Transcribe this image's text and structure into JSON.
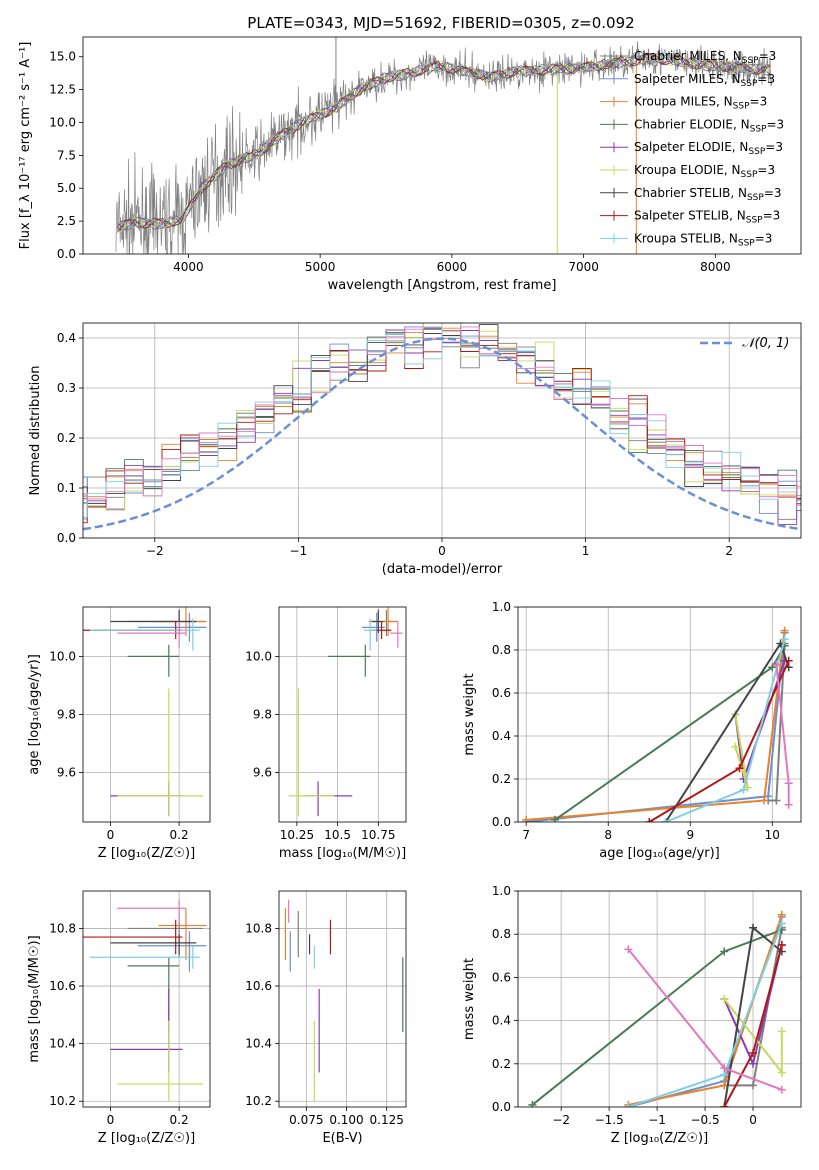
{
  "figure": {
    "title": "PLATE=0343, MJD=51692, FIBERID=0305, z=0.092"
  },
  "palette": {
    "Chabrier MILES": "#7f7f7f",
    "Salpeter MILES": "#6a8fd6",
    "Kroupa MILES": "#e8822b",
    "Chabrier ELODIE": "#4a7a5a",
    "Salpeter ELODIE": "#8a3cb0",
    "Kroupa ELODIE": "#c8d85a",
    "Chabrier STELIB": "#444444",
    "Salpeter STELIB": "#b01818",
    "Kroupa STELIB": "#7fcfe0",
    "pink": "#e377c2"
  },
  "chart_data": [
    {
      "id": "spectrum",
      "type": "line",
      "xlabel": "wavelength [Angstrom, rest frame]",
      "ylabel": "Flux [f_λ 10⁻¹⁷ erg cm⁻² s⁻¹ A⁻¹]",
      "xlim": [
        3200,
        8650
      ],
      "ylim": [
        0,
        16.5
      ],
      "xticks": [
        4000,
        5000,
        6000,
        7000,
        8000
      ],
      "yticks": [
        0.0,
        2.5,
        5.0,
        7.5,
        10.0,
        12.5,
        15.0
      ],
      "model_shape": [
        [
          3450,
          2.0
        ],
        [
          3600,
          2.4
        ],
        [
          3800,
          2.3
        ],
        [
          3950,
          2.6
        ],
        [
          4100,
          5.0
        ],
        [
          4300,
          6.8
        ],
        [
          4500,
          7.5
        ],
        [
          4700,
          9.0
        ],
        [
          4900,
          10.2
        ],
        [
          5100,
          11.0
        ],
        [
          5300,
          12.5
        ],
        [
          5500,
          13.4
        ],
        [
          5700,
          13.8
        ],
        [
          5900,
          14.3
        ],
        [
          6100,
          13.9
        ],
        [
          6300,
          13.5
        ],
        [
          6500,
          13.9
        ],
        [
          6700,
          14.0
        ],
        [
          6900,
          14.1
        ],
        [
          7100,
          14.3
        ],
        [
          7300,
          14.6
        ],
        [
          7500,
          14.9
        ],
        [
          7700,
          14.7
        ],
        [
          7900,
          14.4
        ],
        [
          8100,
          14.2
        ],
        [
          8400,
          14.0
        ]
      ],
      "legend_position": "right",
      "series": [
        {
          "name": "Chabrier MILES, N_SSP=3"
        },
        {
          "name": "Salpeter MILES, N_SSP=3"
        },
        {
          "name": "Kroupa MILES, N_SSP=3"
        },
        {
          "name": "Chabrier ELODIE, N_SSP=3"
        },
        {
          "name": "Salpeter ELODIE, N_SSP=3"
        },
        {
          "name": "Kroupa ELODIE, N_SSP=3"
        },
        {
          "name": "Chabrier STELIB, N_SSP=3"
        },
        {
          "name": "Salpeter STELIB, N_SSP=3"
        },
        {
          "name": "Kroupa STELIB, N_SSP=3"
        }
      ]
    },
    {
      "id": "residuals",
      "type": "line",
      "xlabel": "(data-model)/error",
      "ylabel": "Normed distribution",
      "xlim": [
        -2.5,
        2.5
      ],
      "ylim": [
        0,
        0.43
      ],
      "xticks": [
        -2,
        -1,
        0,
        1,
        2
      ],
      "yticks": [
        0.0,
        0.1,
        0.2,
        0.3,
        0.4
      ],
      "legend": "𝒩(0, 1)",
      "grid": true
    },
    {
      "id": "age_vs_Z",
      "type": "scatter",
      "xlabel": "Z [log₁₀(Z/Z☉)]",
      "ylabel": "age  [log₁₀(age/yr)]",
      "xlim": [
        -0.08,
        0.29
      ],
      "ylim": [
        9.43,
        10.17
      ],
      "xticks": [
        0.0,
        0.2
      ],
      "yticks": [
        9.6,
        9.8,
        10.0
      ],
      "grid": true
    },
    {
      "id": "age_vs_mass",
      "type": "scatter",
      "xlabel": "mass [log₁₀(M/M☉)]",
      "ylabel": "",
      "xlim": [
        10.14,
        10.92
      ],
      "ylim": [
        9.43,
        10.17
      ],
      "xticks": [
        10.25,
        10.5,
        10.75
      ],
      "yticks": [
        9.6,
        9.8,
        10.0
      ],
      "grid": true
    },
    {
      "id": "weight_vs_age",
      "type": "line",
      "xlabel": "age  [log₁₀(age/yr)]",
      "ylabel": "mass weight",
      "xlim": [
        6.9,
        10.35
      ],
      "ylim": [
        0,
        1.0
      ],
      "xticks": [
        7,
        8,
        9,
        10
      ],
      "yticks": [
        0.0,
        0.2,
        0.4,
        0.6,
        0.8,
        1.0
      ],
      "grid": true
    },
    {
      "id": "mass_vs_Z",
      "type": "scatter",
      "xlabel": "Z [log₁₀(Z/Z☉)]",
      "ylabel": "mass [log₁₀(M/M☉)]",
      "xlim": [
        -0.08,
        0.29
      ],
      "ylim": [
        10.18,
        10.93
      ],
      "xticks": [
        0.0,
        0.2
      ],
      "yticks": [
        10.2,
        10.4,
        10.6,
        10.8
      ],
      "grid": true
    },
    {
      "id": "mass_vs_ebv",
      "type": "scatter",
      "xlabel": "E(B-V)",
      "ylabel": "",
      "xlim": [
        0.058,
        0.137
      ],
      "ylim": [
        10.18,
        10.93
      ],
      "xticks": [
        0.075,
        0.1,
        0.125
      ],
      "xticklabels": [
        "0.075",
        "0.100",
        "0.125"
      ],
      "yticks": [
        10.2,
        10.4,
        10.6,
        10.8
      ],
      "grid": true
    },
    {
      "id": "weight_vs_Z",
      "type": "line",
      "xlabel": "Z [log₁₀(Z/Z☉)]",
      "ylabel": "mass weight",
      "xlim": [
        -2.45,
        0.5
      ],
      "ylim": [
        0,
        1.0
      ],
      "xticks": [
        -2.0,
        -1.5,
        -1.0,
        -0.5,
        0.0
      ],
      "yticks": [
        0.0,
        0.2,
        0.4,
        0.6,
        0.8,
        1.0
      ],
      "grid": true
    }
  ],
  "fits": [
    {
      "name": "Chabrier MILES",
      "Z": 0.2,
      "age": 10.12,
      "mass": 10.8,
      "ebv": 0.07,
      "Zerr": [
        0.15,
        0.07
      ],
      "ageerr": [
        0.05,
        0.04
      ],
      "masserr": [
        0.1,
        0.06
      ],
      "ages": [
        9.95,
        10.05,
        10.15
      ],
      "zs": [
        -0.3,
        0.0,
        0.3
      ],
      "weights": [
        0.1,
        0.1,
        0.83
      ]
    },
    {
      "name": "Salpeter MILES",
      "Z": 0.23,
      "age": 10.1,
      "mass": 10.74,
      "ebv": 0.065,
      "Zerr": [
        0.15,
        0.05
      ],
      "ageerr": [
        0.05,
        0.05
      ],
      "masserr": [
        0.09,
        0.05
      ],
      "ages": [
        7.0,
        9.95,
        10.15
      ],
      "zs": [
        -1.3,
        -0.3,
        0.3
      ],
      "weights": [
        0.0,
        0.12,
        0.88
      ]
    },
    {
      "name": "Kroupa MILES",
      "Z": 0.22,
      "age": 10.12,
      "mass": 10.81,
      "ebv": 0.062,
      "Zerr": [
        0.08,
        0.06
      ],
      "ageerr": [
        0.05,
        0.05
      ],
      "masserr": [
        0.12,
        0.06
      ],
      "ages": [
        7.0,
        9.9,
        10.15
      ],
      "zs": [
        -1.3,
        -0.3,
        0.3
      ],
      "weights": [
        0.01,
        0.1,
        0.89
      ]
    },
    {
      "name": "Chabrier ELODIE",
      "Z": 0.17,
      "age": 10.0,
      "mass": 10.67,
      "ebv": 0.135,
      "Zerr": [
        0.12,
        0.03
      ],
      "ageerr": [
        0.07,
        0.04
      ],
      "masserr": [
        0.23,
        0.03
      ],
      "ages": [
        7.35,
        10.0,
        10.15
      ],
      "zs": [
        -2.3,
        -0.3,
        0.3
      ],
      "weights": [
        0.01,
        0.72,
        0.82
      ]
    },
    {
      "name": "Salpeter ELODIE",
      "Z": 0.17,
      "age": 9.52,
      "mass": 10.38,
      "ebv": 0.083,
      "Zerr": [
        0.17,
        0.04
      ],
      "ageerr": [
        0.07,
        0.05
      ],
      "masserr": [
        0.08,
        0.21
      ],
      "ages": [
        9.55,
        9.65,
        10.15
      ],
      "zs": [
        -0.3,
        0.0,
        0.3
      ],
      "weights": [
        0.5,
        0.2,
        0.75
      ]
    },
    {
      "name": "Kroupa ELODIE",
      "Z": 0.17,
      "age": 9.52,
      "mass": 10.26,
      "ebv": 0.08,
      "Zerr": [
        0.15,
        0.1
      ],
      "ageerr": [
        0.07,
        0.37
      ],
      "masserr": [
        0.06,
        0.22
      ],
      "ages": [
        9.55,
        9.7,
        9.55
      ],
      "zs": [
        -0.3,
        0.3,
        0.3
      ],
      "weights": [
        0.5,
        0.16,
        0.35
      ]
    },
    {
      "name": "Chabrier STELIB",
      "Z": 0.2,
      "age": 10.12,
      "mass": 10.75,
      "ebv": 0.077,
      "Zerr": [
        0.2,
        0.05
      ],
      "ageerr": [
        0.04,
        0.04
      ],
      "masserr": [
        0.04,
        0.03
      ],
      "ages": [
        8.7,
        10.1,
        10.2
      ],
      "zs": [
        -0.3,
        0.0,
        0.3
      ],
      "weights": [
        0.0,
        0.83,
        0.72
      ]
    },
    {
      "name": "Salpeter STELIB",
      "Z": 0.19,
      "age": 10.09,
      "mass": 10.77,
      "ebv": 0.09,
      "Zerr": [
        0.27,
        0.02
      ],
      "ageerr": [
        0.03,
        0.03
      ],
      "masserr": [
        0.06,
        0.06
      ],
      "ages": [
        8.5,
        9.6,
        10.2
      ],
      "zs": [
        -0.3,
        0.0,
        0.3
      ],
      "weights": [
        0.0,
        0.25,
        0.75
      ]
    },
    {
      "name": "Kroupa STELIB",
      "Z": 0.24,
      "age": 10.09,
      "mass": 10.7,
      "ebv": 0.08,
      "Zerr": [
        0.3,
        0.02
      ],
      "ageerr": [
        0.07,
        0.04
      ],
      "masserr": [
        0.04,
        0.04
      ],
      "ages": [
        8.7,
        9.65,
        10.15
      ],
      "zs": [
        -1.3,
        -0.3,
        0.3
      ],
      "weights": [
        0.0,
        0.15,
        0.85
      ]
    },
    {
      "name": "pink",
      "Z": 0.2,
      "age": 10.08,
      "mass": 10.87,
      "ebv": 0.064,
      "Zerr": [
        0.18,
        0.02
      ],
      "ageerr": [
        0.05,
        0.04
      ],
      "masserr": [
        0.05,
        0.03
      ],
      "ages": [
        10.05,
        10.2,
        10.2
      ],
      "zs": [
        -1.3,
        -0.3,
        0.3
      ],
      "weights": [
        0.73,
        0.18,
        0.08
      ]
    }
  ]
}
